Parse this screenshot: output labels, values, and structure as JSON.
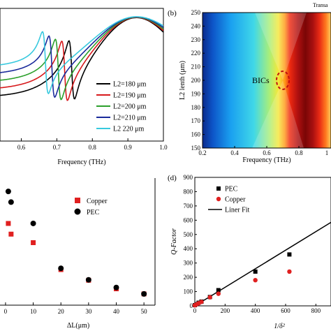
{
  "panels": {
    "a": {
      "label": ""
    },
    "b": {
      "label": "(b)"
    },
    "c": {
      "label": ""
    },
    "d": {
      "label": "(d)"
    }
  },
  "colors": {
    "black": "#000000",
    "red": "#d7191c",
    "green": "#2ca02c",
    "navy": "#1a2a9b",
    "cyan": "#38c9de",
    "redmark": "#e02020"
  },
  "chart_data": [
    {
      "id": "a",
      "type": "line",
      "xlabel": "Frequency (THz)",
      "ylabel": "",
      "xlim": [
        0.5,
        1.0
      ],
      "xticks": [
        "0.6",
        "0.7",
        "0.8",
        "0.9",
        "1.0"
      ],
      "grid": false,
      "legend_position": "right",
      "series": [
        {
          "name": "L2=180 μm",
          "color": "#000000",
          "f0": 0.742
        },
        {
          "name": "L2=190 μm",
          "color": "#d7191c",
          "f0": 0.722
        },
        {
          "name": "L2=200 μm",
          "color": "#2ca02c",
          "f0": 0.704
        },
        {
          "name": "L2=210 μm",
          "color": "#1a2a9b",
          "f0": 0.686
        },
        {
          "name": "L2  220 μm",
          "color": "#38c9de",
          "f0": 0.668
        }
      ]
    },
    {
      "id": "b",
      "type": "heatmap",
      "title": "Transa",
      "xlabel": "Frequency (THz)",
      "ylabel": "L2 lenth (μm)",
      "xlim": [
        0.2,
        1.0
      ],
      "ylim": [
        150,
        250
      ],
      "xticks": [
        "0.2",
        "0.4",
        "0.6",
        "0.8",
        "1"
      ],
      "yticks": [
        "150",
        "160",
        "170",
        "180",
        "190",
        "200",
        "210",
        "220",
        "230",
        "240",
        "250"
      ],
      "annotation": "BICs",
      "bic_point": {
        "x": 0.7,
        "y": 200
      }
    },
    {
      "id": "c",
      "type": "scatter",
      "xlabel": "ΔL(μm)",
      "ylabel": "",
      "xlim": [
        0,
        55
      ],
      "xticks": [
        "0",
        "10",
        "20",
        "30",
        "40",
        "50"
      ],
      "legend_position": "upper-right",
      "series": [
        {
          "name": "Copper",
          "marker": "square",
          "color": "#e02020",
          "x": [
            1,
            2,
            10,
            20,
            30,
            40,
            50
          ],
          "y": [
            175,
            150,
            130,
            67,
            42,
            22,
            10
          ]
        },
        {
          "name": "PEC",
          "marker": "circle",
          "color": "#000000",
          "x": [
            1,
            2,
            10,
            20,
            30,
            40,
            50
          ],
          "y": [
            250,
            225,
            175,
            70,
            43,
            25,
            10
          ]
        }
      ]
    },
    {
      "id": "d",
      "type": "scatter",
      "xlabel": "1/δ²",
      "ylabel": "Q-Factor",
      "xlim": [
        0,
        900
      ],
      "ylim": [
        0,
        900
      ],
      "xticks": [
        "0",
        "200",
        "400",
        "600",
        "800"
      ],
      "yticks": [
        "0",
        "100",
        "200",
        "300",
        "400",
        "500",
        "600",
        "700",
        "800",
        "900"
      ],
      "legend_position": "upper-left",
      "series": [
        {
          "name": "PEC",
          "marker": "square",
          "color": "#000000",
          "x": [
            0,
            11,
            25,
            44,
            100,
            156,
            400,
            625
          ],
          "y": [
            5,
            12,
            22,
            30,
            62,
            110,
            240,
            360
          ]
        },
        {
          "name": "Copper",
          "marker": "circle",
          "color": "#e02020",
          "x": [
            0,
            11,
            25,
            44,
            100,
            156,
            400,
            625
          ],
          "y": [
            4,
            10,
            18,
            28,
            60,
            85,
            180,
            240
          ]
        },
        {
          "name": "Liner Fit",
          "marker": "line",
          "color": "#000000",
          "x": [
            0,
            900
          ],
          "y": [
            0,
            585
          ]
        }
      ]
    }
  ]
}
